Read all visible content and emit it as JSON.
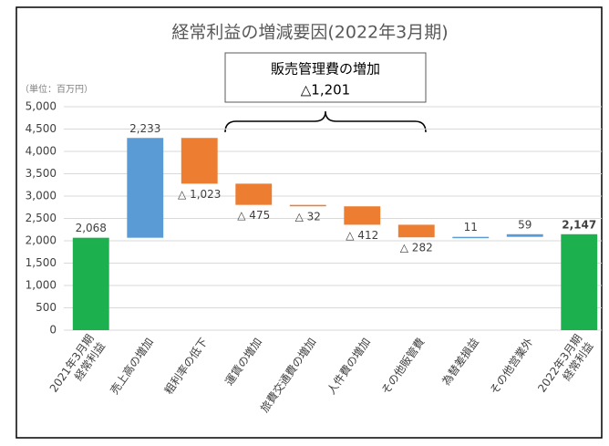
{
  "chart_data": {
    "type": "waterfall",
    "title": "経常利益の増減要因(2022年3月期)",
    "unit_label": "（単位：百万円）",
    "annotation": {
      "title": "販売管理費の増加",
      "value": -1201,
      "value_label": "△1,201"
    },
    "categories": [
      "2021年3月期\n経常利益",
      "売上高の増加",
      "粗利率の低下",
      "運賃の増加",
      "旅費交通費の増加",
      "人件費の増加",
      "その他販管費",
      "為替差損益",
      "その他営業外",
      "2022年3月期\n経常利益"
    ],
    "values": [
      2068,
      2233,
      -1023,
      -475,
      -32,
      -412,
      -282,
      11,
      59,
      2147
    ],
    "value_labels": [
      "2,068",
      "2,233",
      "△ 1,023",
      "△ 475",
      "△ 32",
      "△ 412",
      "△ 282",
      "11",
      "59",
      "2,147"
    ],
    "measures": [
      "absolute",
      "relative",
      "relative",
      "relative",
      "relative",
      "relative",
      "relative",
      "relative",
      "relative",
      "absolute"
    ],
    "colors": {
      "total": "#1db04f",
      "increase": "#5b9bd5",
      "decrease": "#ed7d31"
    },
    "ylim": [
      0,
      5000
    ],
    "yticks": [
      0,
      500,
      {
        "value": 1000,
        "label": "1,000"
      },
      {
        "value": 1500,
        "label": "1,500"
      },
      {
        "value": 2000,
        "label": "2,000"
      },
      {
        "value": 2500,
        "label": "2,500"
      },
      {
        "value": 3000,
        "label": "3,000"
      },
      {
        "value": 3500,
        "label": "3,500"
      },
      {
        "value": 4000,
        "label": "4,000"
      },
      {
        "value": 4500,
        "label": "4,500"
      },
      {
        "value": 5000,
        "label": "5,000"
      }
    ],
    "grid": true
  }
}
